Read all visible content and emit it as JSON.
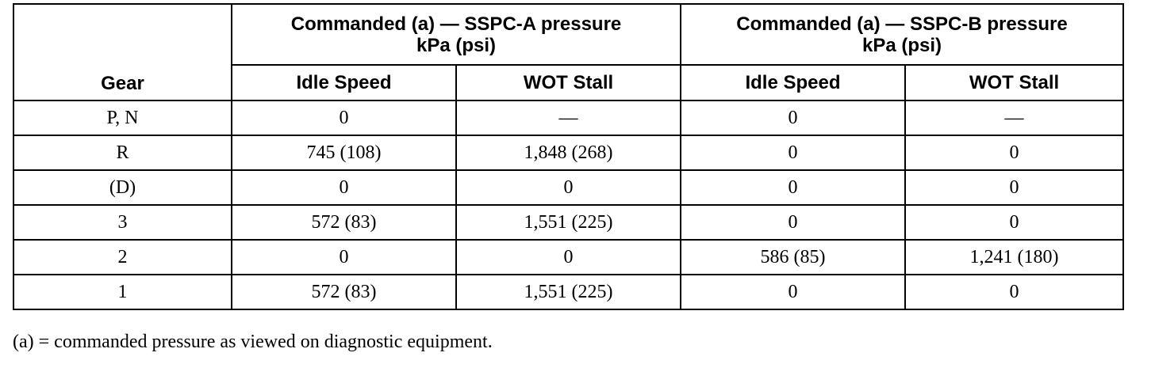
{
  "table": {
    "header": {
      "gear": "Gear",
      "groups": [
        {
          "lines": [
            "Commanded (a) — SSPC-A pressure",
            "kPa (psi)"
          ]
        },
        {
          "lines": [
            "Commanded (a) — SSPC-B pressure",
            "kPa (psi)"
          ]
        }
      ],
      "subheaders": [
        "Idle Speed",
        "WOT Stall",
        "Idle Speed",
        "WOT Stall"
      ]
    },
    "rows": [
      [
        "P, N",
        "0",
        "—",
        "0",
        "—"
      ],
      [
        "R",
        "745 (108)",
        "1,848 (268)",
        "0",
        "0"
      ],
      [
        "(D)",
        "0",
        "0",
        "0",
        "0"
      ],
      [
        "3",
        "572 (83)",
        "1,551 (225)",
        "0",
        "0"
      ],
      [
        "2",
        "0",
        "0",
        "586 (85)",
        "1,241 (180)"
      ],
      [
        "1",
        "572 (83)",
        "1,551 (225)",
        "0",
        "0"
      ]
    ]
  },
  "footnote": "(a) = commanded pressure as viewed on diagnostic equipment."
}
